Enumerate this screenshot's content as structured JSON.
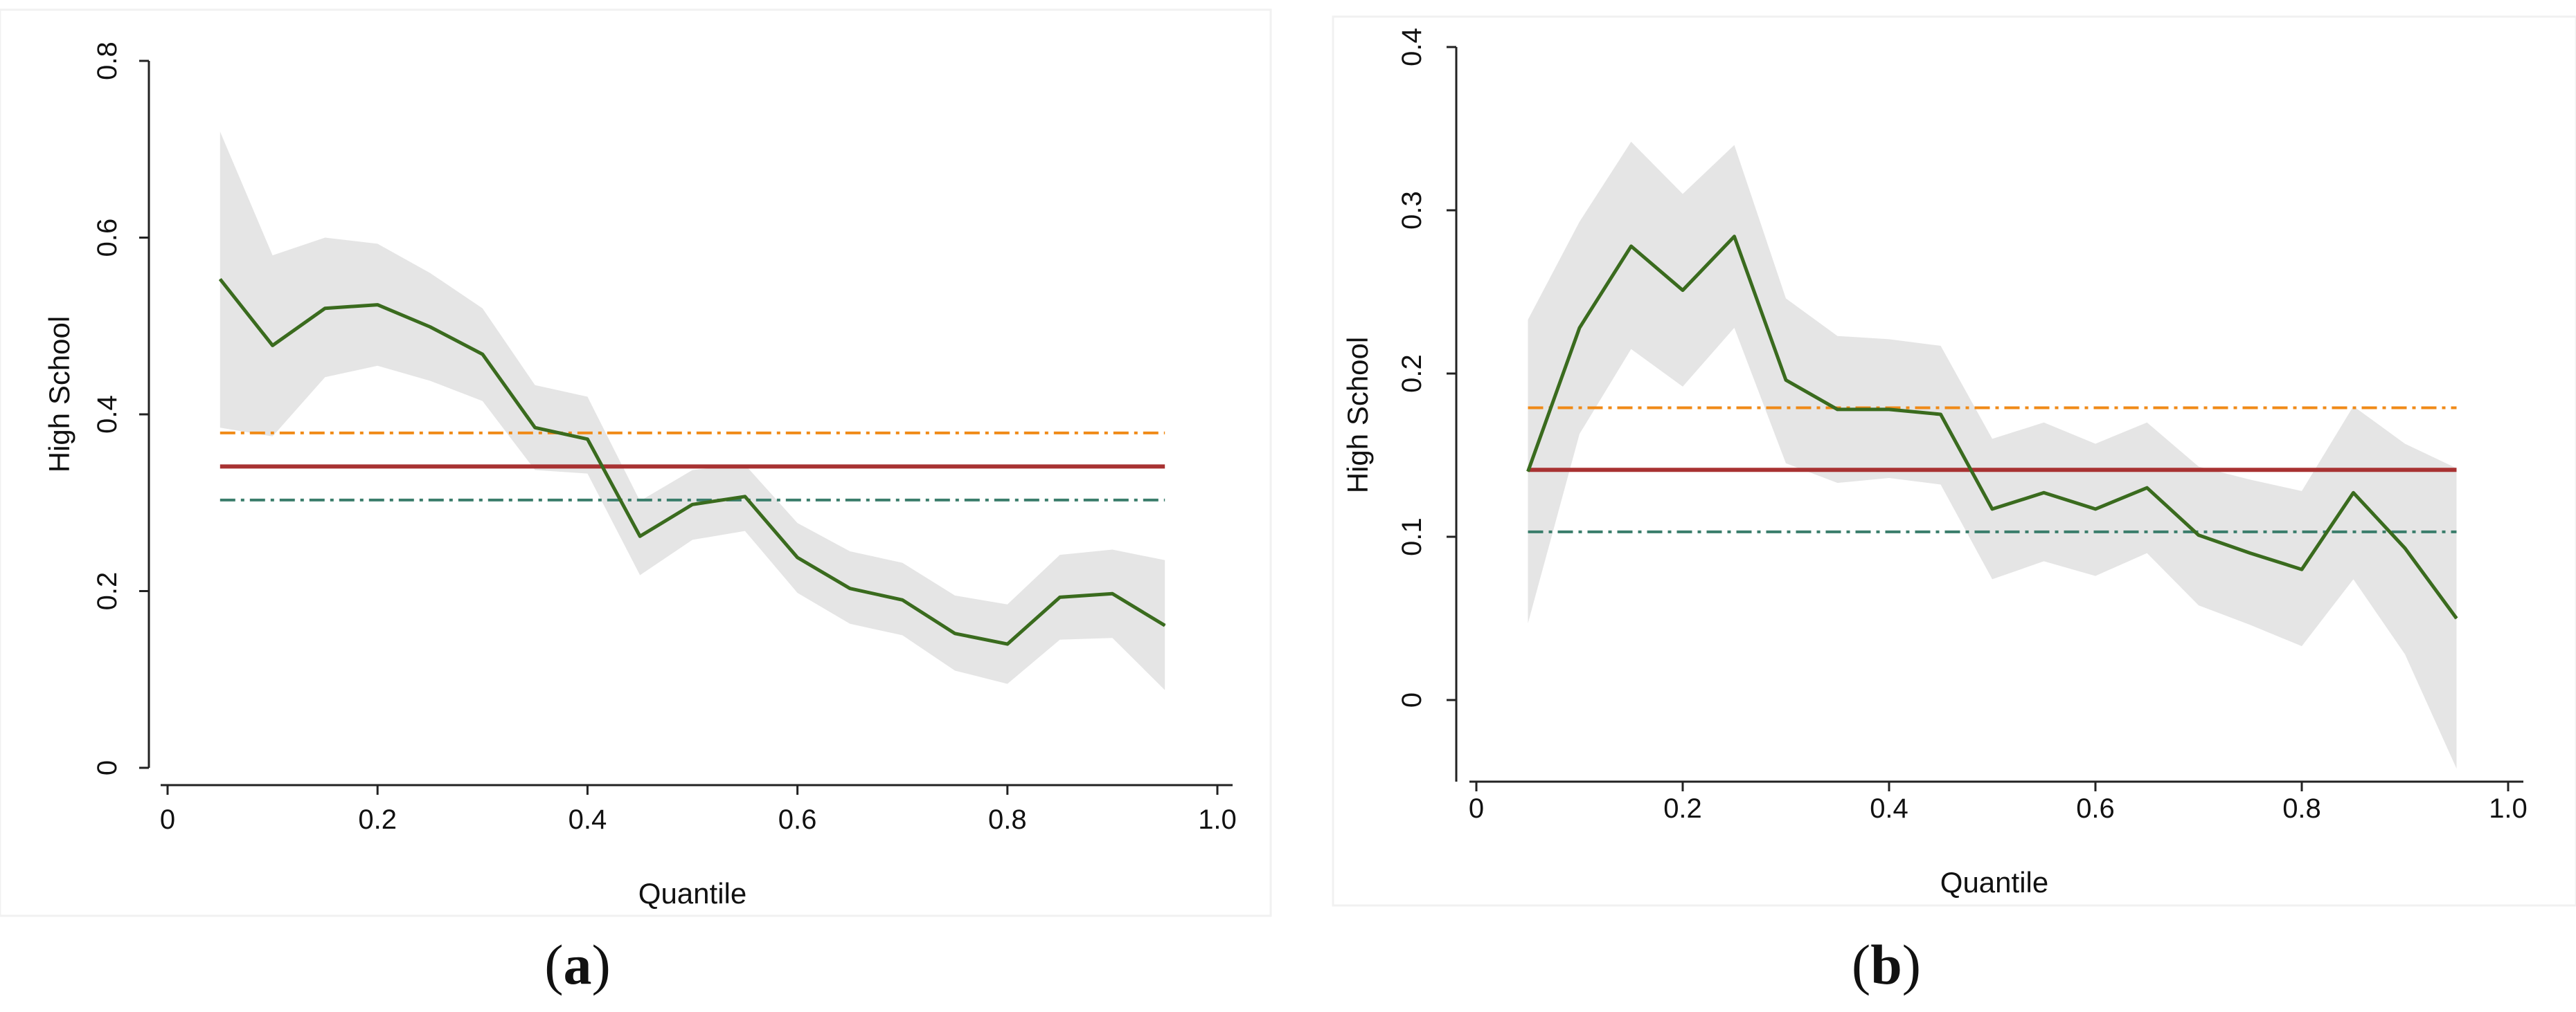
{
  "colors": {
    "band": "#e5e5e5",
    "estimate": "#3a6b1e",
    "ols": "#a83232",
    "upper": "#f08a17",
    "lower": "#3a7d6b",
    "axis": "#222222"
  },
  "chart_data": [
    {
      "type": "line",
      "panel_label": "a",
      "xlabel": "Quantile",
      "ylabel": "High School",
      "xlim": [
        0,
        1.0
      ],
      "ylim": [
        0,
        0.8
      ],
      "xticks": [
        {
          "v": 0,
          "label": "0"
        },
        {
          "v": 0.2,
          "label": "0.2"
        },
        {
          "v": 0.4,
          "label": "0.4"
        },
        {
          "v": 0.6,
          "label": "0.6"
        },
        {
          "v": 0.8,
          "label": "0.8"
        },
        {
          "v": 1.0,
          "label": "1.0"
        }
      ],
      "yticks": [
        {
          "v": 0,
          "label": "0"
        },
        {
          "v": 0.2,
          "label": "0.2"
        },
        {
          "v": 0.4,
          "label": "0.4"
        },
        {
          "v": 0.6,
          "label": "0.6"
        },
        {
          "v": 0.8,
          "label": "0.8"
        }
      ],
      "x": [
        0.05,
        0.1,
        0.15,
        0.2,
        0.25,
        0.3,
        0.35,
        0.4,
        0.45,
        0.5,
        0.55,
        0.6,
        0.65,
        0.7,
        0.75,
        0.8,
        0.85,
        0.9,
        0.95
      ],
      "series": [
        {
          "name": "quantile estimate",
          "values": [
            0.553,
            0.478,
            0.52,
            0.524,
            0.499,
            0.468,
            0.385,
            0.372,
            0.262,
            0.298,
            0.307,
            0.238,
            0.203,
            0.19,
            0.152,
            0.14,
            0.193,
            0.197,
            0.161
          ]
        },
        {
          "name": "ci lower",
          "values": [
            0.385,
            0.375,
            0.442,
            0.455,
            0.438,
            0.415,
            0.337,
            0.333,
            0.218,
            0.258,
            0.268,
            0.198,
            0.163,
            0.15,
            0.11,
            0.095,
            0.145,
            0.147,
            0.088
          ]
        },
        {
          "name": "ci upper",
          "values": [
            0.72,
            0.58,
            0.6,
            0.593,
            0.56,
            0.52,
            0.433,
            0.42,
            0.302,
            0.337,
            0.343,
            0.277,
            0.245,
            0.232,
            0.195,
            0.185,
            0.241,
            0.247,
            0.235
          ]
        }
      ],
      "reference_lines": [
        {
          "name": "ols estimate",
          "value": 0.341,
          "style": "solid"
        },
        {
          "name": "ols upper bound",
          "value": 0.379,
          "style": "dashdot"
        },
        {
          "name": "ols lower bound",
          "value": 0.303,
          "style": "dashdot"
        }
      ]
    },
    {
      "type": "line",
      "panel_label": "b",
      "xlabel": "Quantile",
      "ylabel": "High School",
      "xlim": [
        0,
        1.0
      ],
      "ylim": [
        -0.05,
        0.4
      ],
      "xticks": [
        {
          "v": 0,
          "label": "0"
        },
        {
          "v": 0.2,
          "label": "0.2"
        },
        {
          "v": 0.4,
          "label": "0.4"
        },
        {
          "v": 0.6,
          "label": "0.6"
        },
        {
          "v": 0.8,
          "label": "0.8"
        },
        {
          "v": 1.0,
          "label": "1.0"
        }
      ],
      "yticks": [
        {
          "v": 0,
          "label": "0"
        },
        {
          "v": 0.1,
          "label": "0.1"
        },
        {
          "v": 0.2,
          "label": "0.2"
        },
        {
          "v": 0.3,
          "label": "0.3"
        },
        {
          "v": 0.4,
          "label": "0.4"
        }
      ],
      "x": [
        0.05,
        0.1,
        0.15,
        0.2,
        0.25,
        0.3,
        0.35,
        0.4,
        0.45,
        0.5,
        0.55,
        0.6,
        0.65,
        0.7,
        0.75,
        0.8,
        0.85,
        0.9,
        0.95
      ],
      "series": [
        {
          "name": "quantile estimate",
          "values": [
            0.14,
            0.228,
            0.278,
            0.251,
            0.284,
            0.196,
            0.178,
            0.178,
            0.175,
            0.117,
            0.127,
            0.117,
            0.13,
            0.101,
            0.09,
            0.08,
            0.127,
            0.093,
            0.05
          ]
        },
        {
          "name": "ci lower",
          "values": [
            0.047,
            0.163,
            0.215,
            0.192,
            0.228,
            0.145,
            0.133,
            0.136,
            0.132,
            0.074,
            0.085,
            0.076,
            0.09,
            0.058,
            0.046,
            0.033,
            0.074,
            0.028,
            -0.042
          ]
        },
        {
          "name": "ci upper",
          "values": [
            0.233,
            0.293,
            0.342,
            0.31,
            0.34,
            0.246,
            0.223,
            0.221,
            0.217,
            0.16,
            0.17,
            0.157,
            0.17,
            0.143,
            0.135,
            0.128,
            0.18,
            0.157,
            0.142
          ]
        }
      ],
      "reference_lines": [
        {
          "name": "ols estimate",
          "value": 0.141,
          "style": "solid"
        },
        {
          "name": "ols upper bound",
          "value": 0.179,
          "style": "dashdot"
        },
        {
          "name": "ols lower bound",
          "value": 0.103,
          "style": "dashdot"
        }
      ]
    }
  ]
}
